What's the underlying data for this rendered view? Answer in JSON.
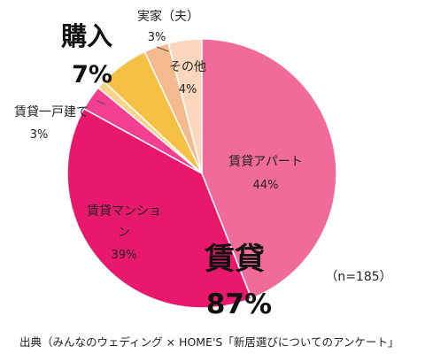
{
  "chart_data": {
    "type": "pie",
    "slices": [
      {
        "label": "賃貸アパート",
        "value": 44,
        "value_label": "44%",
        "color": "#f06b9a"
      },
      {
        "label": "賃貸マンション",
        "value": 39,
        "value_label": "39%",
        "color": "#e8196d"
      },
      {
        "label": "賃貸一戸建て",
        "value": 3,
        "value_label": "3%",
        "color": "#f23f8f"
      },
      {
        "label": "購入（細帯）",
        "value": 1,
        "value_label": "",
        "color": "#f8d58a"
      },
      {
        "label": "購入",
        "value": 6,
        "value_label": "",
        "color": "#f5c043"
      },
      {
        "label": "実家（夫）",
        "value": 3,
        "value_label": "3%",
        "color": "#f4b98d"
      },
      {
        "label": "その他",
        "value": 4,
        "value_label": "4%",
        "color": "#fbd8bd"
      }
    ],
    "group_labels": [
      {
        "title": "賃貸",
        "value_label": "87%"
      },
      {
        "title": "購入",
        "value_label": "7%"
      }
    ],
    "sample_note": "（n=185）",
    "source": "出典（みんなのウェディング × HOME'S「新居選びについてのアンケート」"
  }
}
